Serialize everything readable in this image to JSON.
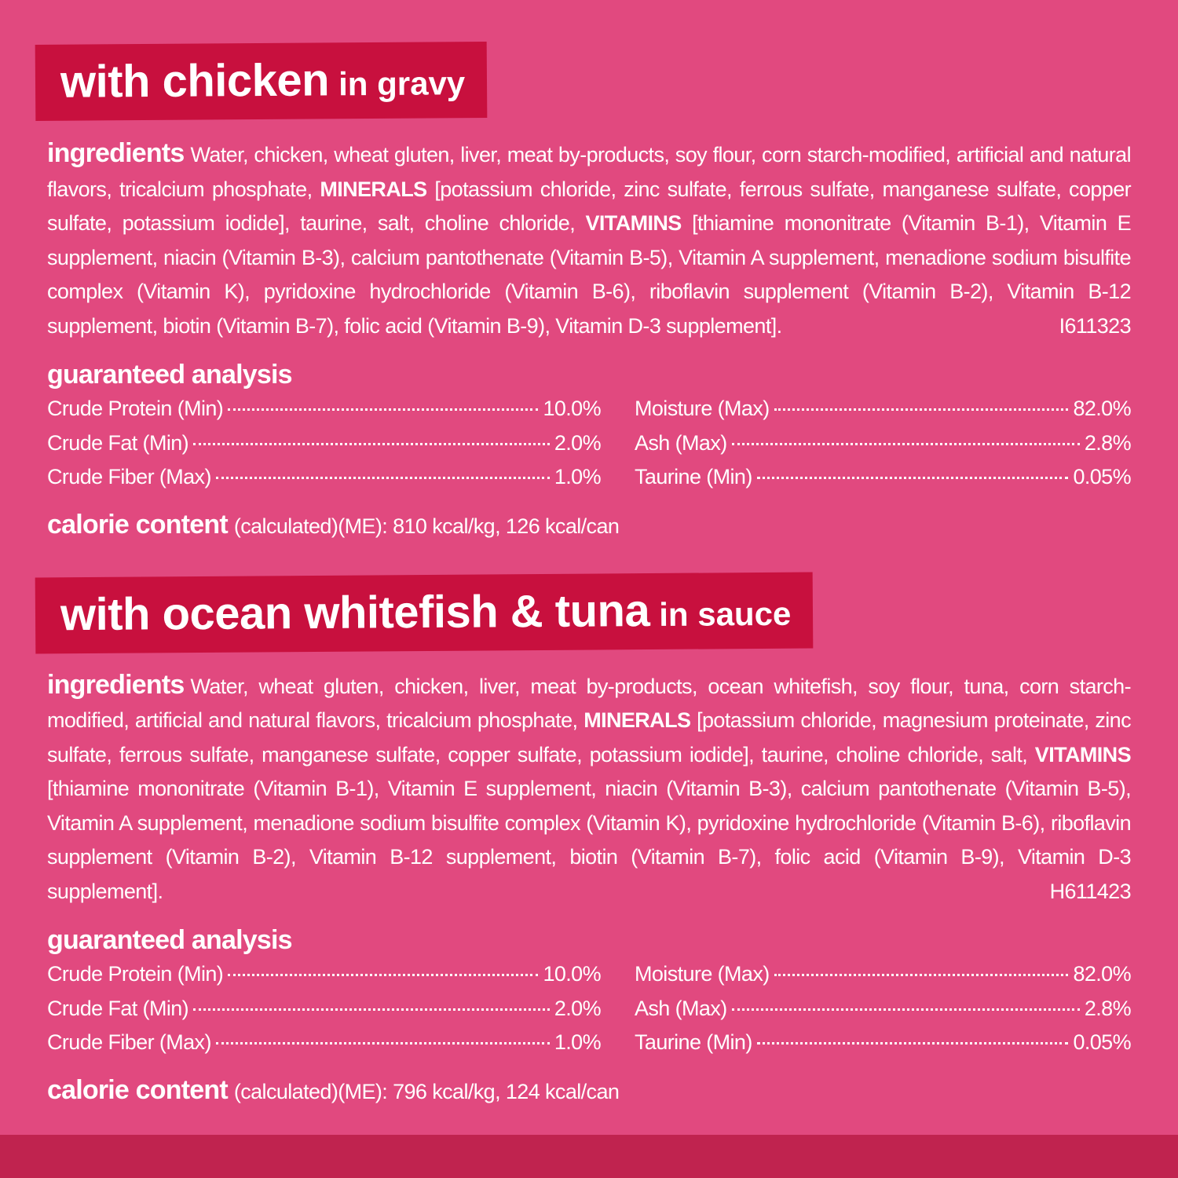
{
  "sections": [
    {
      "title": {
        "main": "with chicken",
        "suffix": "in gravy"
      },
      "ingredients": {
        "label": "ingredients",
        "segments": [
          {
            "text": "Water, chicken, wheat gluten, liver, meat by-products, soy flour, corn starch-modified, artificial and natural flavors, tricalcium phosphate, ",
            "weight": "normal"
          },
          {
            "text": "MINERALS",
            "weight": "bold"
          },
          {
            "text": " [potassium chloride, zinc sulfate, ferrous sulfate, manganese sulfate, copper sulfate, potassium iodide], taurine, salt, choline chloride, ",
            "weight": "normal"
          },
          {
            "text": "VITAMINS",
            "weight": "bold"
          },
          {
            "text": " [thiamine mononitrate (Vitamin B-1), Vitamin E supplement, niacin (Vitamin B-3), calcium pantothenate (Vitamin B-5), Vitamin A supplement, menadione sodium bisulfite complex (Vitamin K), pyridoxine hydrochloride (Vitamin B-6), riboflavin supplement (Vitamin B-2), Vitamin B-12 supplement, biotin (Vitamin B-7), folic acid (Vitamin B-9), Vitamin D-3 supplement].",
            "weight": "normal"
          }
        ],
        "code": "I611323"
      },
      "analysis": {
        "label": "guaranteed analysis",
        "left": [
          {
            "name": "Crude Protein (Min)",
            "value": "10.0%"
          },
          {
            "name": "Crude Fat (Min)",
            "value": "2.0%"
          },
          {
            "name": "Crude Fiber (Max)",
            "value": "1.0%"
          }
        ],
        "right": [
          {
            "name": "Moisture (Max)",
            "value": "82.0%"
          },
          {
            "name": "Ash (Max)",
            "value": "2.8%"
          },
          {
            "name": "Taurine (Min)",
            "value": "0.05%"
          }
        ]
      },
      "calories": {
        "label": "calorie content",
        "text": "(calculated)(ME): 810 kcal/kg, 126 kcal/can"
      }
    },
    {
      "title": {
        "main": "with ocean whitefish & tuna",
        "suffix": "in sauce"
      },
      "ingredients": {
        "label": "ingredients",
        "segments": [
          {
            "text": "Water, wheat gluten, chicken, liver, meat by-products, ocean whitefish, soy flour, tuna, corn starch-modified, artificial and natural flavors, tricalcium phosphate, ",
            "weight": "normal"
          },
          {
            "text": "MINERALS",
            "weight": "bold"
          },
          {
            "text": " [potassium chloride, magnesium proteinate, zinc sulfate, ferrous sulfate, manganese sulfate, copper sulfate, potassium iodide], taurine, choline chloride, salt, ",
            "weight": "normal"
          },
          {
            "text": "VITAMINS",
            "weight": "bold"
          },
          {
            "text": " [thiamine mononitrate (Vitamin B-1), Vitamin E supplement, niacin (Vitamin B-3), calcium pantothenate (Vitamin B-5), Vitamin A supplement, menadione sodium bisulfite complex (Vitamin K), pyridoxine hydrochloride (Vitamin B-6), riboflavin supplement (Vitamin B-2), Vitamin B-12 supplement, biotin (Vitamin B-7), folic acid (Vitamin B-9), Vitamin D-3 supplement].",
            "weight": "normal"
          }
        ],
        "code": "H611423"
      },
      "analysis": {
        "label": "guaranteed analysis",
        "left": [
          {
            "name": "Crude Protein (Min)",
            "value": "10.0%"
          },
          {
            "name": "Crude Fat (Min)",
            "value": "2.0%"
          },
          {
            "name": "Crude Fiber (Max)",
            "value": "1.0%"
          }
        ],
        "right": [
          {
            "name": "Moisture (Max)",
            "value": "82.0%"
          },
          {
            "name": "Ash (Max)",
            "value": "2.8%"
          },
          {
            "name": "Taurine (Min)",
            "value": "0.05%"
          }
        ]
      },
      "calories": {
        "label": "calorie content",
        "text": "(calculated)(ME): 796 kcal/kg, 124 kcal/can"
      }
    }
  ]
}
